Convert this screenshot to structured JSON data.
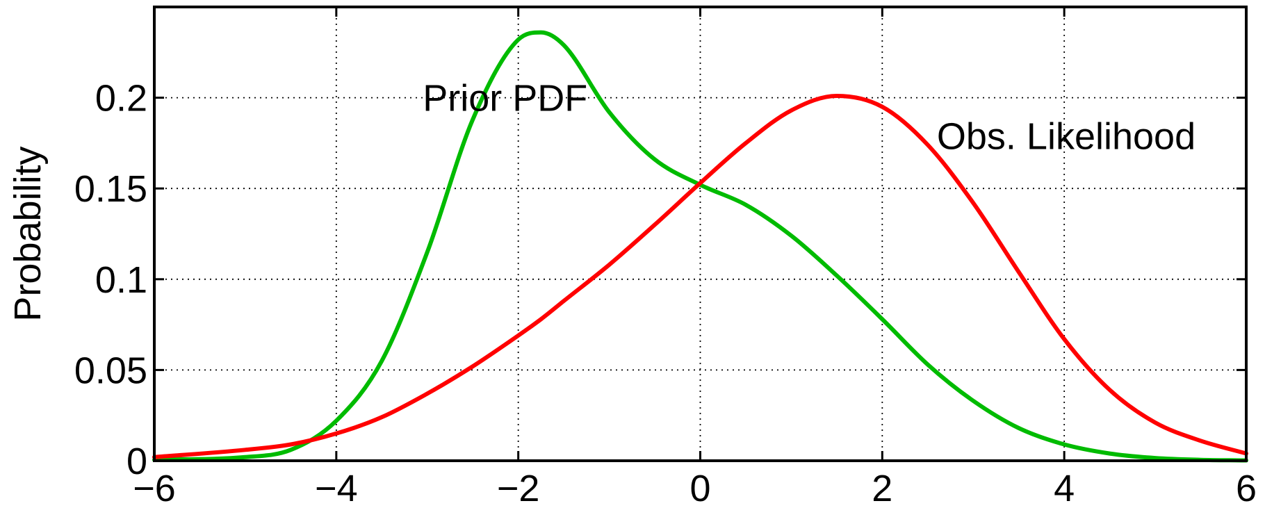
{
  "chart_data": {
    "type": "line",
    "title": "",
    "xlabel": "",
    "ylabel": "Probability",
    "xlim": [
      -6,
      6
    ],
    "ylim": [
      0,
      0.25
    ],
    "grid": true,
    "grid_style": "dotted",
    "xticks": [
      -6,
      -4,
      -2,
      0,
      2,
      4,
      6
    ],
    "xtick_labels": [
      "−6",
      "−4",
      "−2",
      "0",
      "2",
      "4",
      "6"
    ],
    "yticks": [
      0,
      0.05,
      0.1,
      0.15,
      0.2
    ],
    "ytick_labels": [
      "0",
      "0.05",
      "0.1",
      "0.15",
      "0.2"
    ],
    "x": [
      -6,
      -5,
      -4.5,
      -4,
      -3.5,
      -3,
      -2.5,
      -2,
      -1.75,
      -1.5,
      -1,
      -0.5,
      0,
      0.5,
      1,
      1.5,
      2,
      2.5,
      3,
      3.5,
      4,
      4.5,
      5,
      5.5,
      6
    ],
    "series": [
      {
        "name": "Prior PDF",
        "color": "#00bb00",
        "values": [
          0.0005,
          0.002,
          0.006,
          0.022,
          0.055,
          0.115,
          0.188,
          0.232,
          0.236,
          0.229,
          0.192,
          0.166,
          0.152,
          0.141,
          0.124,
          0.102,
          0.078,
          0.053,
          0.033,
          0.018,
          0.009,
          0.004,
          0.0015,
          0.0005,
          0.0002
        ]
      },
      {
        "name": "Obs. Likelihood",
        "color": "#ff0000",
        "values": [
          0.002,
          0.006,
          0.009,
          0.015,
          0.024,
          0.037,
          0.052,
          0.069,
          0.078,
          0.088,
          0.108,
          0.13,
          0.153,
          0.175,
          0.193,
          0.201,
          0.195,
          0.174,
          0.142,
          0.104,
          0.067,
          0.039,
          0.021,
          0.011,
          0.004
        ]
      }
    ],
    "annotations": [
      {
        "text": "Prior PDF",
        "x": -3.05,
        "y": 0.2
      },
      {
        "text": "Obs. Likelihood",
        "x": 2.6,
        "y": 0.179
      }
    ]
  }
}
